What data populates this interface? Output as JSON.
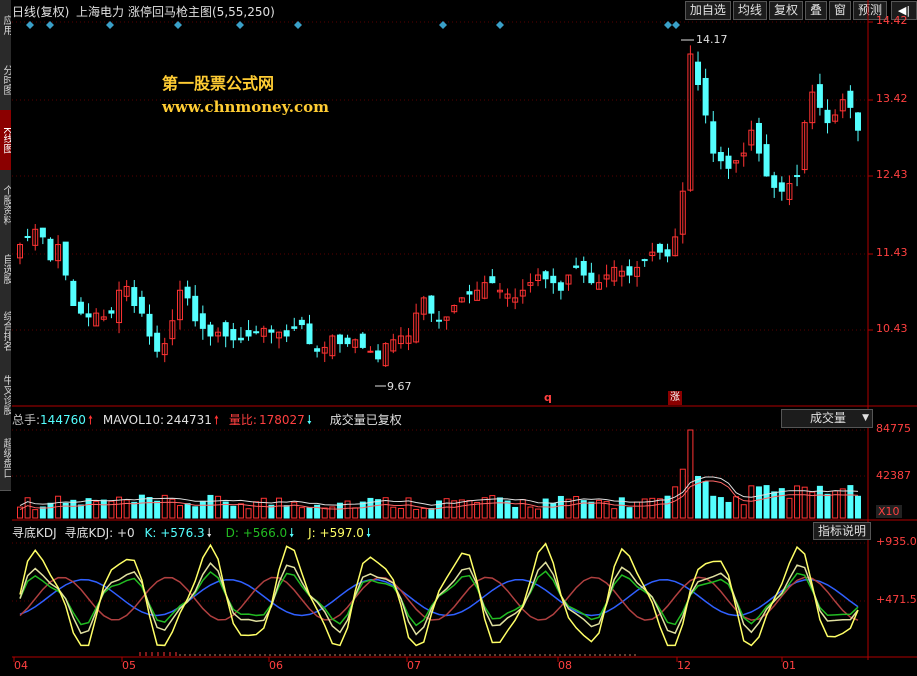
{
  "left_tabs": [
    {
      "label": "应用",
      "active": false
    },
    {
      "label": "分时图",
      "active": false
    },
    {
      "label": "K线图",
      "active": true
    },
    {
      "label": "个股资料",
      "active": false
    },
    {
      "label": "自选股",
      "active": false
    },
    {
      "label": "综合排名",
      "active": false
    },
    {
      "label": "牛叉诊股",
      "active": false
    },
    {
      "label": "超级盘口",
      "active": false
    }
  ],
  "header": {
    "period": "日线(复权)",
    "stock": "上海电力",
    "formula": "涨停回马枪主图(5,55,250)"
  },
  "toolbar": [
    "加自选",
    "均线",
    "复权",
    "叠",
    "窗",
    "预测"
  ],
  "watermark": {
    "line1": "第一股票公式网",
    "line2": "www.chnmoney.com"
  },
  "price_axis": [
    "14.42",
    "13.42",
    "12.43",
    "11.43",
    "10.43"
  ],
  "annotations": {
    "high": "14.17",
    "low": "9.67",
    "mark_q": "q",
    "mark_zhang": "涨"
  },
  "volume_legend": {
    "total_label": "总手:",
    "total_value": "144760",
    "ma_label": "MAVOL10:",
    "ma_value": "244731",
    "ratio_label": "量比:",
    "ratio_value": "178027",
    "note": "成交量已复权",
    "selector": "成交量"
  },
  "volume_axis": [
    "84775",
    "42387",
    "X10"
  ],
  "kdj_legend": {
    "name": "寻底KDJ",
    "main": "寻底KDJ: +0",
    "k": "K: +576.3",
    "d": "D: +566.0",
    "j": "J: +597.0"
  },
  "kdj_axis": [
    "+935.0",
    "+471.5"
  ],
  "indicator_button": "指标说明",
  "months": [
    "04",
    "05",
    "06",
    "07",
    "08",
    "12",
    "01"
  ],
  "colors": {
    "up": "#ff3333",
    "down": "#54ffff",
    "axis": "#b00000",
    "text_red": "#ff4040"
  },
  "chart_data": {
    "type": "candlestick",
    "price_range": [
      9.67,
      14.42
    ],
    "closes": [
      11.5,
      11.6,
      11.7,
      11.6,
      11.3,
      11.5,
      11.1,
      10.7,
      10.6,
      10.55,
      10.6,
      10.55,
      10.6,
      10.9,
      10.95,
      10.7,
      10.6,
      10.3,
      10.1,
      10.2,
      10.5,
      10.9,
      10.8,
      10.5,
      10.4,
      10.3,
      10.35,
      10.3,
      10.25,
      10.25,
      10.3,
      10.35,
      10.4,
      10.35,
      10.35,
      10.3,
      10.4,
      10.45,
      10.2,
      10.1,
      10.15,
      10.3,
      10.2,
      10.2,
      10.25,
      10.15,
      10.1,
      10.0,
      10.2,
      10.25,
      10.3,
      10.3,
      10.6,
      10.8,
      10.6,
      10.5,
      10.55,
      10.7,
      10.8,
      10.85,
      10.9,
      11.0,
      11.0,
      10.9,
      10.85,
      10.8,
      10.9,
      11.0,
      11.1,
      11.05,
      11.0,
      10.9,
      11.1,
      11.2,
      11.1,
      11.0,
      11.0,
      11.1,
      11.2,
      11.15,
      11.1,
      11.2,
      11.3,
      11.4,
      11.4,
      11.35,
      11.6,
      12.2,
      14.0,
      13.6,
      13.2,
      12.7,
      12.6,
      12.5,
      12.6,
      12.7,
      13.0,
      12.7,
      12.4,
      12.25,
      12.2,
      12.3,
      12.4,
      13.1,
      13.5,
      13.3,
      13.1,
      13.2,
      13.4,
      13.3,
      13.0
    ],
    "volume_range": [
      0,
      84775
    ],
    "kdj_range": [
      0,
      935.0
    ],
    "kdj_last": {
      "k": 576.3,
      "d": 566.0,
      "j": 597.0
    }
  }
}
